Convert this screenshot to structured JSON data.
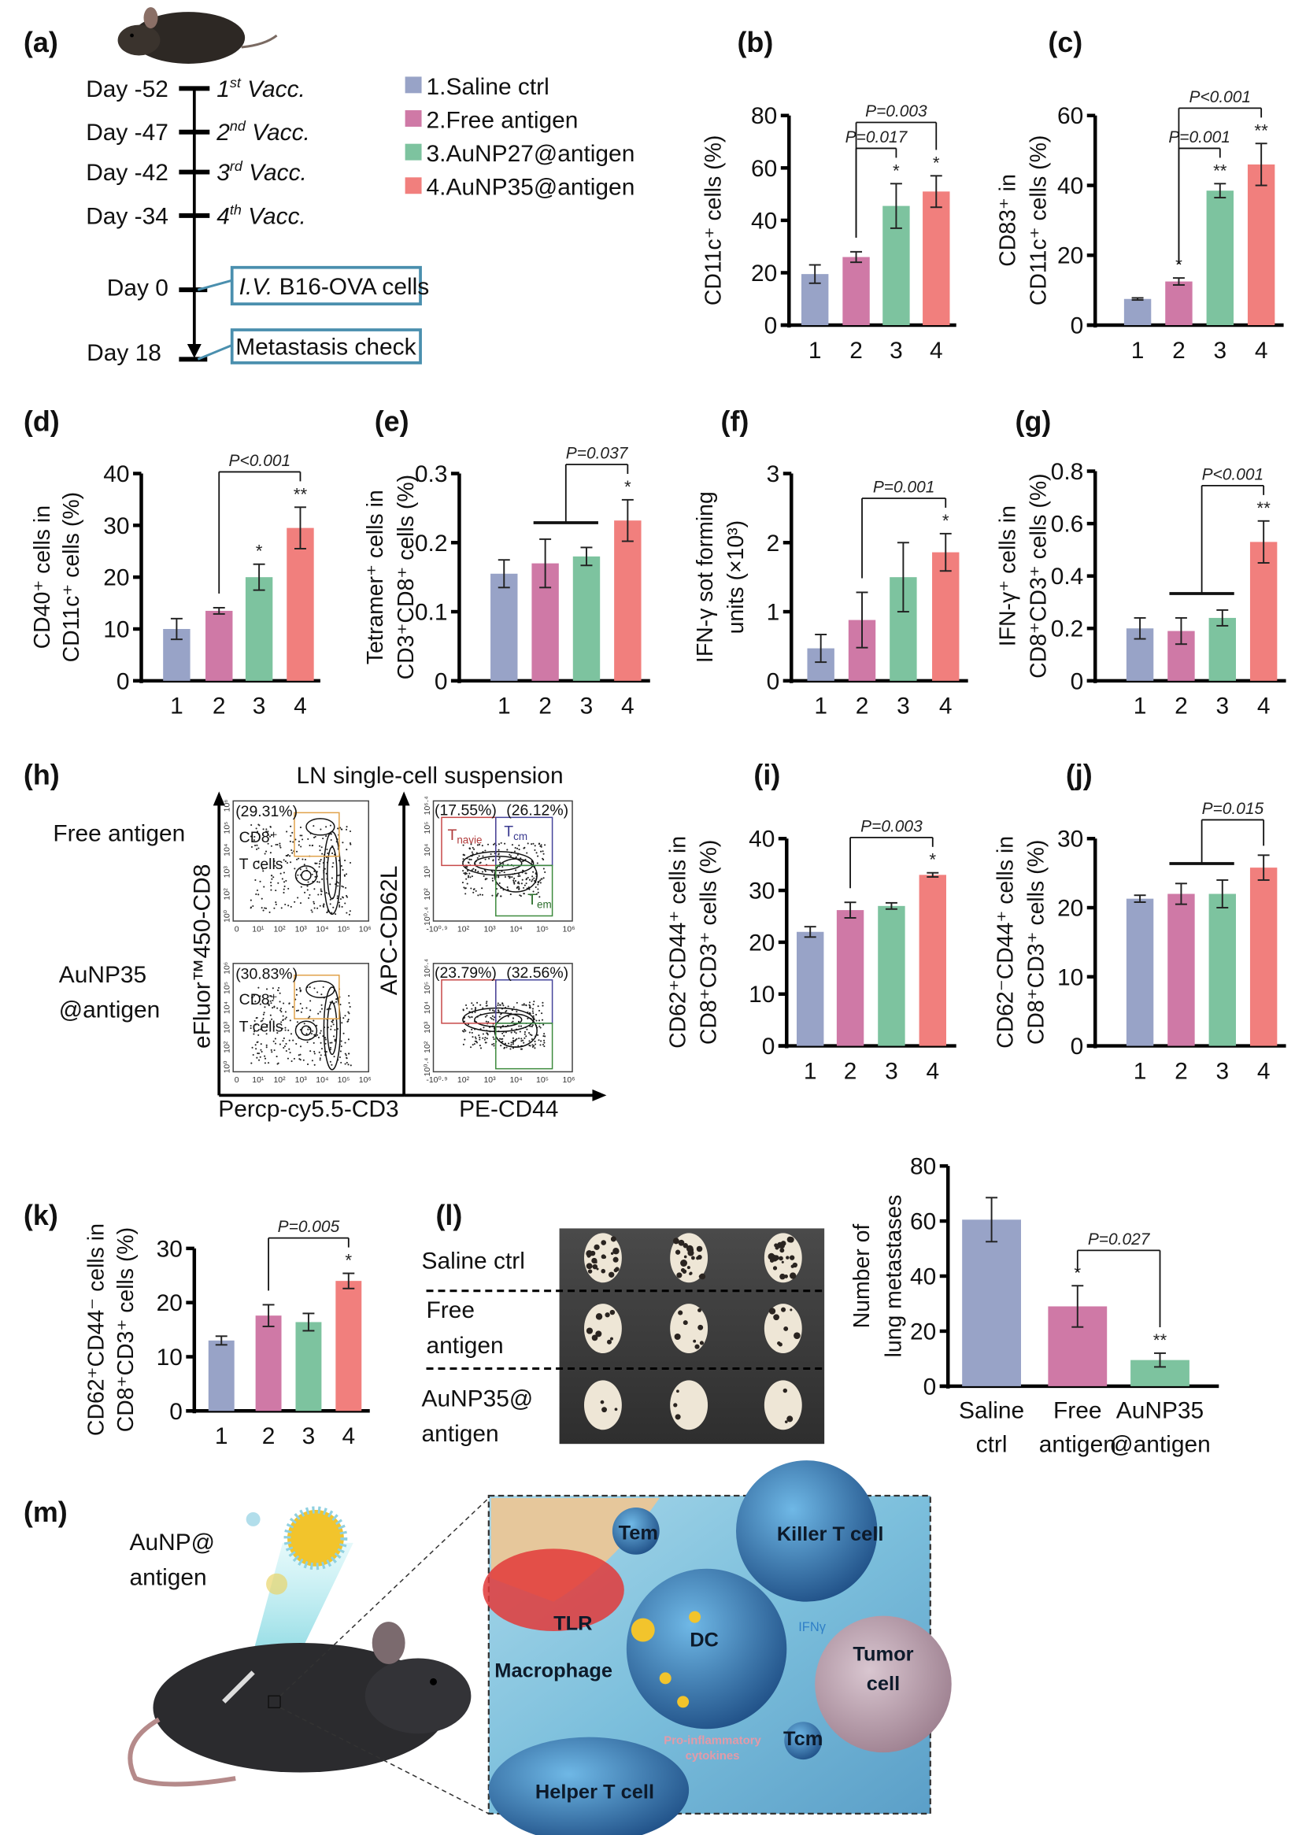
{
  "panel_labels": {
    "a": "(a)",
    "b": "(b)",
    "c": "(c)",
    "d": "(d)",
    "e": "(e)",
    "f": "(f)",
    "g": "(g)",
    "h": "(h)",
    "i": "(i)",
    "j": "(j)",
    "k": "(k)",
    "l": "(l)",
    "m": "(m)"
  },
  "colors": {
    "group1": "#98a3c7",
    "group2": "#cf79a6",
    "group3": "#7dc39f",
    "group4": "#f17f7d",
    "box_border": "#4a8fae"
  },
  "timeline": {
    "events": [
      {
        "day": "Day -52",
        "num": "1",
        "sup": "st",
        "rest": " Vacc."
      },
      {
        "day": "Day -47",
        "num": "2",
        "sup": "nd",
        "rest": " Vacc."
      },
      {
        "day": "Day -42",
        "num": "3",
        "sup": "rd",
        "rest": " Vacc."
      },
      {
        "day": "Day -34",
        "num": "4",
        "sup": "th",
        "rest": " Vacc."
      }
    ],
    "day0": {
      "day": "Day 0",
      "italic": "I.V.",
      "rest": " B16-OVA cells"
    },
    "day18": {
      "day": "Day 18",
      "text": "Metastasis check"
    }
  },
  "legend": [
    "1.Saline ctrl",
    "2.Free antigen",
    "3.AuNP27@antigen",
    "4.AuNP35@antigen"
  ],
  "flow": {
    "title": "LN single-cell suspension",
    "rows": [
      {
        "label_lines": [
          "Free antigen"
        ],
        "cd8_pct": "(29.31%)",
        "naive_pct": "(17.55%)",
        "cm_pct": "(26.12%)"
      },
      {
        "label_lines": [
          "AuNP35",
          "@antigen"
        ],
        "cd8_pct": "(30.83%)",
        "naive_pct": "(23.79%)",
        "cm_pct": "(32.56%)"
      }
    ],
    "gate_text": {
      "cd8": "CD8⁺",
      "tcells": "T cells",
      "naive": "T",
      "naive_sub": "navie",
      "cm": "T",
      "cm_sub": "cm",
      "em": "T",
      "em_sub": "em"
    },
    "left_xticks": [
      "0",
      "10¹",
      "10²",
      "10³",
      "10⁴",
      "10⁵",
      "10⁶"
    ],
    "left_yticks": [
      "10⁰",
      "10²",
      "10³",
      "10⁴",
      "10⁵",
      "10⁶"
    ],
    "right_xticks": [
      "-10⁰·⁹",
      "10²",
      "10³",
      "10⁴",
      "10⁵",
      "10⁶"
    ],
    "right_yticks": [
      "10⁰·⁴",
      "10²",
      "10³",
      "10⁴",
      "10⁵",
      "10⁶·⁴"
    ],
    "left_xlabel": "Percp-cy5.5-CD3",
    "left_ylabel": "eFluor™450-CD8",
    "right_xlabel": "PE-CD44",
    "right_ylabel": "APC-CD62L"
  },
  "lung_photo": {
    "rows": [
      [
        "Saline ctrl"
      ],
      [
        "Free",
        "antigen"
      ],
      [
        "AuNP35@",
        "antigen"
      ]
    ]
  },
  "schematic": {
    "vaccine_label": [
      "AuNP@",
      "antigen"
    ],
    "labels": {
      "tem": "Tem",
      "killer": "Killer T cell",
      "tlr": "TLR",
      "dc": "DC",
      "ifn": "IFNγ",
      "macrophage": "Macrophage",
      "tumor1": "Tumor",
      "tumor2": "cell",
      "tcm": "Tcm",
      "pro1": "Pro-inflammatory",
      "pro2": "cytokines",
      "helper": "Helper T cell"
    }
  },
  "chart_data": [
    {
      "id": "b",
      "type": "bar",
      "categories": [
        "1",
        "2",
        "3",
        "4"
      ],
      "values": [
        19.5,
        26,
        45.5,
        51
      ],
      "errors": [
        3.5,
        2,
        8.5,
        6
      ],
      "ylim": [
        0,
        80
      ],
      "yticks": [
        "0",
        "20",
        "40",
        "60",
        "80"
      ],
      "ylabel": [
        "CD11c⁺ cells (%)"
      ],
      "stars": [
        "",
        "",
        "*",
        "*"
      ],
      "comparisons": [
        {
          "groups": [
            2
          ],
          "to": 3,
          "label": "P=0.017"
        },
        {
          "groups": [
            2
          ],
          "to": 4,
          "label": "P=0.003"
        }
      ]
    },
    {
      "id": "c",
      "type": "bar",
      "categories": [
        "1",
        "2",
        "3",
        "4"
      ],
      "values": [
        7.5,
        12.5,
        38.5,
        46
      ],
      "errors": [
        0.3,
        1,
        2,
        6
      ],
      "ylim": [
        0,
        60
      ],
      "yticks": [
        "0",
        "20",
        "40",
        "60"
      ],
      "ylabel": [
        "CD83⁺ in",
        "CD11c⁺ cells (%)"
      ],
      "stars": [
        "",
        "*",
        "**",
        "**"
      ],
      "comparisons": [
        {
          "groups": [
            2
          ],
          "to": 3,
          "label": "P=0.001"
        },
        {
          "groups": [
            2
          ],
          "to": 4,
          "label": "P<0.001"
        }
      ]
    },
    {
      "id": "d",
      "type": "bar",
      "categories": [
        "1",
        "2",
        "3",
        "4"
      ],
      "values": [
        10,
        13.5,
        20,
        29.5
      ],
      "errors": [
        2,
        0.6,
        2.5,
        4
      ],
      "ylim": [
        0,
        40
      ],
      "yticks": [
        "0",
        "10",
        "20",
        "30",
        "40"
      ],
      "ylabel": [
        "CD40⁺ cells in",
        "CD11c⁺ cells (%)"
      ],
      "stars": [
        "",
        "",
        "*",
        "**"
      ],
      "comparisons": [
        {
          "groups": [
            2
          ],
          "to": 4,
          "label": "P<0.001"
        }
      ]
    },
    {
      "id": "e",
      "type": "bar",
      "categories": [
        "1",
        "2",
        "3",
        "4"
      ],
      "values": [
        0.155,
        0.17,
        0.18,
        0.232
      ],
      "errors": [
        0.02,
        0.035,
        0.013,
        0.03
      ],
      "ylim": [
        0,
        0.3
      ],
      "yticks": [
        "0",
        "0.1",
        "0.2",
        "0.3"
      ],
      "ylabel": [
        "Tetramer⁺ cells in",
        "CD3⁺CD8⁺ cells (%)"
      ],
      "stars": [
        "",
        "",
        "",
        "*"
      ],
      "comparisons": [
        {
          "groups": [
            2,
            3
          ],
          "to": 4,
          "label": "P=0.037"
        }
      ]
    },
    {
      "id": "f",
      "type": "bar",
      "categories": [
        "1",
        "2",
        "3",
        "4"
      ],
      "values": [
        0.47,
        0.88,
        1.5,
        1.86
      ],
      "errors": [
        0.2,
        0.4,
        0.5,
        0.27
      ],
      "ylim": [
        0,
        3
      ],
      "yticks": [
        "0",
        "1",
        "2",
        "3"
      ],
      "ylabel": [
        "IFN-γ sot forming",
        "units (×10³)"
      ],
      "stars": [
        "",
        "",
        "",
        "*"
      ],
      "comparisons": [
        {
          "groups": [
            2
          ],
          "to": 4,
          "label": "P=0.001"
        }
      ]
    },
    {
      "id": "g",
      "type": "bar",
      "categories": [
        "1",
        "2",
        "3",
        "4"
      ],
      "values": [
        0.2,
        0.19,
        0.24,
        0.53
      ],
      "errors": [
        0.04,
        0.05,
        0.03,
        0.08
      ],
      "ylim": [
        0,
        0.8
      ],
      "yticks": [
        "0",
        "0.2",
        "0.4",
        "0.6",
        "0.8"
      ],
      "ylabel": [
        "IFN-γ⁺ cells in",
        "CD8⁺CD3⁺ cells (%)"
      ],
      "stars": [
        "",
        "",
        "",
        "**"
      ],
      "comparisons": [
        {
          "groups": [
            2,
            3
          ],
          "to": 4,
          "label": "P<0.001"
        }
      ]
    },
    {
      "id": "i",
      "type": "bar",
      "categories": [
        "1",
        "2",
        "3",
        "4"
      ],
      "values": [
        22,
        26.2,
        27,
        33
      ],
      "errors": [
        1,
        1.5,
        0.6,
        0.4
      ],
      "ylim": [
        0,
        40
      ],
      "yticks": [
        "0",
        "10",
        "20",
        "30",
        "40"
      ],
      "ylabel": [
        "CD62⁺CD44⁺ cells in",
        "CD8⁺CD3⁺ cells (%)"
      ],
      "stars": [
        "",
        "",
        "",
        "*"
      ],
      "comparisons": [
        {
          "groups": [
            2
          ],
          "to": 4,
          "label": "P=0.003"
        }
      ]
    },
    {
      "id": "j",
      "type": "bar",
      "categories": [
        "1",
        "2",
        "3",
        "4"
      ],
      "values": [
        21.3,
        22,
        22,
        25.8
      ],
      "errors": [
        0.5,
        1.5,
        2,
        1.8
      ],
      "ylim": [
        0,
        30
      ],
      "yticks": [
        "0",
        "10",
        "20",
        "30"
      ],
      "ylabel": [
        "CD62⁻CD44⁺ cells in",
        "CD8⁺CD3⁺ cells (%)"
      ],
      "stars": [
        "",
        "",
        "",
        ""
      ],
      "comparisons": [
        {
          "groups": [
            2,
            3
          ],
          "to": 4,
          "label": "P=0.015"
        }
      ]
    },
    {
      "id": "k",
      "type": "bar",
      "categories": [
        "1",
        "2",
        "3",
        "4"
      ],
      "values": [
        13,
        17.6,
        16.4,
        24
      ],
      "errors": [
        0.8,
        2,
        1.6,
        1.4
      ],
      "ylim": [
        0,
        30
      ],
      "yticks": [
        "0",
        "10",
        "20",
        "30"
      ],
      "ylabel": [
        "CD62⁺CD44⁻ cells in",
        "CD8⁺CD3⁺ cells (%)"
      ],
      "stars": [
        "",
        "",
        "",
        "*"
      ],
      "comparisons": [
        {
          "groups": [
            2
          ],
          "to": 4,
          "label": "P=0.005"
        }
      ]
    },
    {
      "id": "l",
      "type": "bar",
      "categories": [
        [
          "Saline",
          "ctrl"
        ],
        [
          "Free",
          "antigen"
        ],
        [
          "AuNP35",
          "@antigen"
        ]
      ],
      "values": [
        60.5,
        29,
        9.5
      ],
      "errors": [
        8,
        7.5,
        2.5
      ],
      "ylim": [
        0,
        80
      ],
      "yticks": [
        "0",
        "20",
        "40",
        "60",
        "80"
      ],
      "ylabel": [
        "Number of",
        "lung metastases"
      ],
      "stars": [
        "",
        "*",
        "**"
      ],
      "comparisons": [
        {
          "groups": [
            2
          ],
          "to": 3,
          "label": "P=0.027"
        }
      ]
    }
  ]
}
